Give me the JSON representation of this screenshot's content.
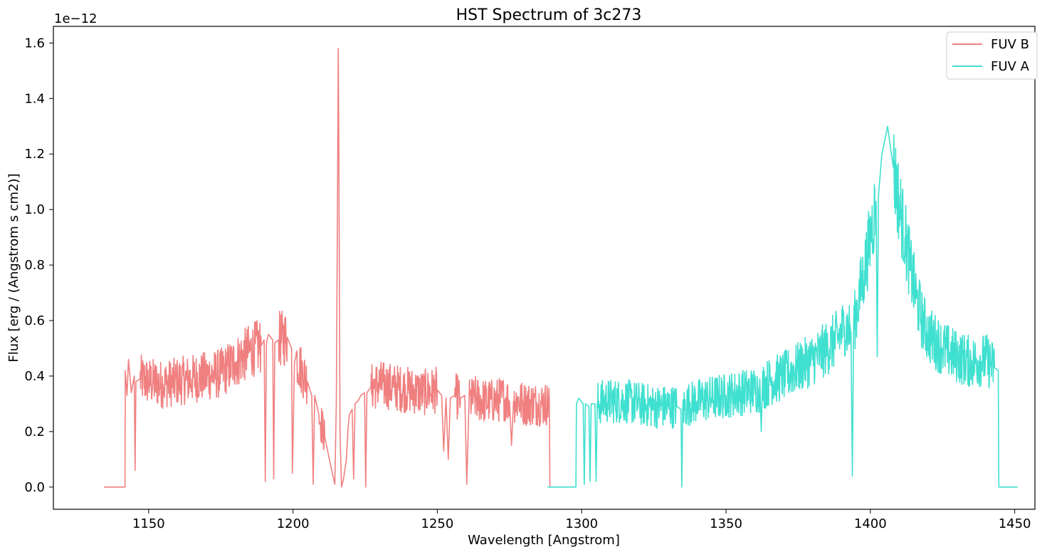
{
  "chart_data": {
    "type": "line",
    "title": "HST Spectrum of 3c273",
    "xlabel": "Wavelength [Angstrom]",
    "ylabel": "Flux [erg / (Angstrom s cm2)]",
    "y_offset_label": "1e−12",
    "xlim": [
      1117,
      1457
    ],
    "ylim": [
      -0.08,
      1.66
    ],
    "x_ticks": [
      1150,
      1200,
      1250,
      1300,
      1350,
      1400,
      1450
    ],
    "y_ticks": [
      0.0,
      0.2,
      0.4,
      0.6,
      0.8,
      1.0,
      1.2,
      1.4,
      1.6
    ],
    "grid": false,
    "legend_position": "top-right",
    "series": [
      {
        "name": "FUV B",
        "color": "#f08080",
        "x": [
          1134.5,
          1141.8,
          1141.9,
          1142.5,
          1143.0,
          1144.0,
          1145.0,
          1145.3,
          1145.6,
          1147.0,
          1150.0,
          1155.0,
          1160.0,
          1165.0,
          1170.0,
          1175.0,
          1180.0,
          1185.0,
          1189.0,
          1190.0,
          1190.4,
          1190.8,
          1191.5,
          1193.0,
          1193.3,
          1193.7,
          1195.0,
          1198.0,
          1199.5,
          1199.8,
          1200.5,
          1201.0,
          1203.0,
          1205.0,
          1206.5,
          1207.0,
          1207.5,
          1209.0,
          1211.0,
          1213.0,
          1214.5,
          1215.0,
          1215.4,
          1215.67,
          1215.9,
          1216.3,
          1216.8,
          1217.5,
          1218.5,
          1219.0,
          1219.5,
          1220.5,
          1221.0,
          1221.5,
          1222.5,
          1223.5,
          1224.8,
          1225.2,
          1225.6,
          1227.0,
          1230.0,
          1235.0,
          1240.0,
          1245.0,
          1250.0,
          1251.5,
          1252.2,
          1253.0,
          1253.8,
          1254.5,
          1256.0,
          1258.0,
          1259.5,
          1260.2,
          1261.0,
          1263.0,
          1266.0,
          1270.0,
          1273.0,
          1275.0,
          1275.7,
          1276.4,
          1278.0,
          1280.0,
          1285.0,
          1288.8,
          1289.0
        ],
        "y": [
          0.0,
          0.0,
          0.42,
          0.33,
          0.46,
          0.34,
          0.4,
          0.06,
          0.38,
          0.39,
          0.38,
          0.37,
          0.38,
          0.39,
          0.4,
          0.41,
          0.45,
          0.49,
          0.51,
          0.53,
          0.02,
          0.52,
          0.55,
          0.53,
          0.03,
          0.52,
          0.53,
          0.54,
          0.5,
          0.05,
          0.45,
          0.47,
          0.42,
          0.38,
          0.33,
          0.01,
          0.33,
          0.26,
          0.18,
          0.08,
          0.01,
          0.3,
          1.0,
          1.58,
          1.2,
          0.2,
          0.0,
          0.03,
          0.1,
          0.2,
          0.26,
          0.28,
          0.03,
          0.3,
          0.31,
          0.33,
          0.34,
          0.0,
          0.34,
          0.36,
          0.37,
          0.36,
          0.35,
          0.34,
          0.35,
          0.33,
          0.13,
          0.32,
          0.1,
          0.32,
          0.33,
          0.32,
          0.33,
          0.01,
          0.31,
          0.32,
          0.31,
          0.31,
          0.32,
          0.31,
          0.15,
          0.31,
          0.31,
          0.3,
          0.3,
          0.3,
          0.0
        ]
      },
      {
        "name": "FUV A",
        "color": "#40e0d0",
        "x": [
          1288.2,
          1298.0,
          1298.2,
          1299.0,
          1300.5,
          1300.9,
          1301.3,
          1302.5,
          1302.9,
          1303.3,
          1304.6,
          1305.0,
          1305.4,
          1308.0,
          1315.0,
          1320.0,
          1325.0,
          1330.0,
          1333.0,
          1334.4,
          1334.7,
          1335.0,
          1337.0,
          1340.0,
          1345.0,
          1350.0,
          1355.0,
          1360.0,
          1361.8,
          1362.2,
          1362.6,
          1365.0,
          1370.0,
          1375.0,
          1380.0,
          1385.0,
          1389.0,
          1391.0,
          1393.3,
          1393.75,
          1394.2,
          1396.0,
          1398.0,
          1400.0,
          1402.0,
          1402.4,
          1402.8,
          1403.2,
          1404.0,
          1405.0,
          1406.0,
          1407.0,
          1408.0,
          1410.0,
          1412.0,
          1414.0,
          1416.0,
          1418.0,
          1420.0,
          1425.0,
          1430.0,
          1435.0,
          1440.0,
          1443.0,
          1444.3,
          1444.5,
          1451.0
        ],
        "y": [
          0.0,
          0.0,
          0.3,
          0.32,
          0.3,
          0.01,
          0.3,
          0.29,
          0.02,
          0.3,
          0.3,
          0.02,
          0.3,
          0.31,
          0.31,
          0.3,
          0.29,
          0.29,
          0.29,
          0.28,
          0.0,
          0.28,
          0.3,
          0.31,
          0.32,
          0.33,
          0.34,
          0.35,
          0.35,
          0.2,
          0.36,
          0.38,
          0.4,
          0.43,
          0.46,
          0.5,
          0.54,
          0.58,
          0.56,
          0.04,
          0.58,
          0.68,
          0.78,
          0.9,
          1.03,
          0.47,
          1.05,
          1.1,
          1.2,
          1.25,
          1.3,
          1.22,
          1.15,
          1.02,
          0.9,
          0.78,
          0.68,
          0.6,
          0.55,
          0.5,
          0.47,
          0.45,
          0.46,
          0.43,
          0.42,
          0.0,
          0.0
        ]
      }
    ]
  }
}
